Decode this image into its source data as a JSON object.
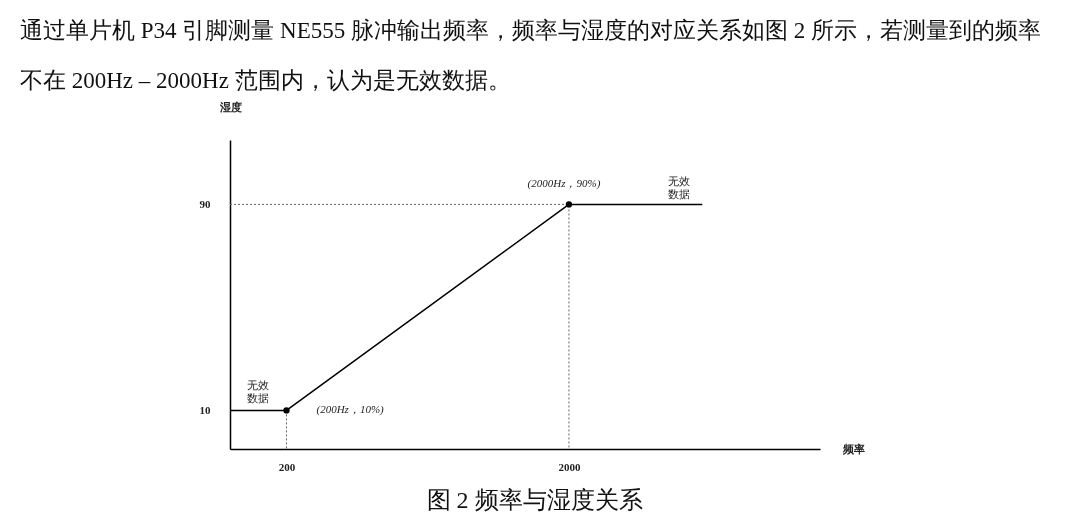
{
  "chart_data": {
    "type": "line",
    "title": "通过单片机 P34 引脚测量 NE555 脉冲输出频率，频率与湿度的对应关系如图 2 所示，若测量到的频率不在 200Hz – 2000Hz 范围内，认为是无效数据。",
    "xlabel": "频率",
    "ylabel": "湿度",
    "xlim": [
      -160,
      3600
    ],
    "ylim": [
      -5,
      115
    ],
    "xticks": [
      200,
      2000
    ],
    "yticks": [
      10,
      90
    ],
    "grid": false,
    "series": [
      {
        "type": "line",
        "x": [
          -160,
          200,
          2000,
          2850
        ],
        "values": [
          10,
          10,
          90,
          90
        ],
        "color": "#000000",
        "line_style": "solid"
      },
      {
        "type": "scatter",
        "x": [
          200,
          2000
        ],
        "values": [
          10,
          90
        ],
        "color": "#000000",
        "marker": "circle"
      },
      {
        "type": "line",
        "x": [
          -160,
          2000,
          2000
        ],
        "values": [
          90,
          90,
          -5
        ],
        "color": "#666666",
        "line_style": "dotted"
      },
      {
        "type": "line",
        "x": [
          200,
          200
        ],
        "values": [
          10,
          -5
        ],
        "color": "#666666",
        "line_style": "dotted"
      }
    ],
    "annotations": [
      {
        "text": "(2000Hz，90%)",
        "x": 2000,
        "y": 90
      },
      {
        "text": "(200Hz，10%)",
        "x": 200,
        "y": 10
      },
      {
        "text": "无效数据",
        "x": 20,
        "y": 10
      },
      {
        "text": "无效数据",
        "x": 2700,
        "y": 90
      },
      "图 2 频率与湿度关系"
    ]
  }
}
